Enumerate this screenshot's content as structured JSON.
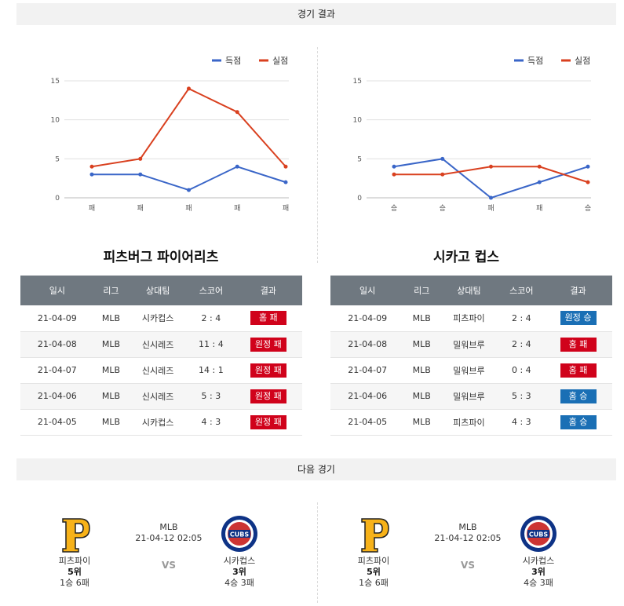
{
  "header": {
    "results_title": "경기 결과",
    "next_title": "다음 경기"
  },
  "legend": {
    "score": "득점",
    "conceded": "실점"
  },
  "colors": {
    "score": "#3a66c8",
    "conceded": "#d9401f",
    "loss": "#d0021b",
    "win": "#1a6fb5"
  },
  "chart_data": [
    {
      "type": "line",
      "team": "피츠버그 파이어리츠",
      "categories": [
        "패",
        "패",
        "패",
        "패",
        "패"
      ],
      "series": [
        {
          "name": "득점",
          "values": [
            3,
            3,
            1,
            4,
            2
          ]
        },
        {
          "name": "실점",
          "values": [
            4,
            5,
            14,
            11,
            4
          ]
        }
      ],
      "yticks": [
        0,
        5,
        10,
        15
      ],
      "ylim": [
        0,
        15
      ],
      "legend": "top-right",
      "grid": true
    },
    {
      "type": "line",
      "team": "시카고 컵스",
      "categories": [
        "승",
        "승",
        "패",
        "패",
        "승"
      ],
      "series": [
        {
          "name": "득점",
          "values": [
            4,
            5,
            0,
            2,
            4
          ]
        },
        {
          "name": "실점",
          "values": [
            3,
            3,
            4,
            4,
            2
          ]
        }
      ],
      "yticks": [
        0,
        5,
        10,
        15
      ],
      "ylim": [
        0,
        15
      ],
      "legend": "top-right",
      "grid": true
    }
  ],
  "table_headers": [
    "일시",
    "리그",
    "상대팀",
    "스코어",
    "결과"
  ],
  "teams": [
    {
      "title": "피츠버그 파이어리츠",
      "rows": [
        {
          "date": "21-04-09",
          "league": "MLB",
          "opponent": "시카컵스",
          "score": "2 : 4",
          "result": "홈 패",
          "outcome": "loss"
        },
        {
          "date": "21-04-08",
          "league": "MLB",
          "opponent": "신시레즈",
          "score": "11 : 4",
          "result": "원정 패",
          "outcome": "loss"
        },
        {
          "date": "21-04-07",
          "league": "MLB",
          "opponent": "신시레즈",
          "score": "14 : 1",
          "result": "원정 패",
          "outcome": "loss"
        },
        {
          "date": "21-04-06",
          "league": "MLB",
          "opponent": "신시레즈",
          "score": "5 : 3",
          "result": "원정 패",
          "outcome": "loss"
        },
        {
          "date": "21-04-05",
          "league": "MLB",
          "opponent": "시카컵스",
          "score": "4 : 3",
          "result": "원정 패",
          "outcome": "loss"
        }
      ]
    },
    {
      "title": "시카고 컵스",
      "rows": [
        {
          "date": "21-04-09",
          "league": "MLB",
          "opponent": "피츠파이",
          "score": "2 : 4",
          "result": "원정 승",
          "outcome": "win"
        },
        {
          "date": "21-04-08",
          "league": "MLB",
          "opponent": "밀워브루",
          "score": "2 : 4",
          "result": "홈 패",
          "outcome": "loss"
        },
        {
          "date": "21-04-07",
          "league": "MLB",
          "opponent": "밀워브루",
          "score": "0 : 4",
          "result": "홈 패",
          "outcome": "loss"
        },
        {
          "date": "21-04-06",
          "league": "MLB",
          "opponent": "밀워브루",
          "score": "5 : 3",
          "result": "홈 승",
          "outcome": "win"
        },
        {
          "date": "21-04-05",
          "league": "MLB",
          "opponent": "피츠파이",
          "score": "4 : 3",
          "result": "홈 승",
          "outcome": "win"
        }
      ]
    }
  ],
  "next_games": [
    {
      "home": {
        "name": "피츠파이",
        "rank": "5위",
        "record": "1승 6패",
        "logo": "pirates-logo"
      },
      "league": "MLB",
      "time": "21-04-12 02:05",
      "vs": "VS",
      "away": {
        "name": "시카컵스",
        "rank": "3위",
        "record": "4승 3패",
        "logo": "cubs-logo",
        "logo_text": "CUBS"
      }
    },
    {
      "home": {
        "name": "피츠파이",
        "rank": "5위",
        "record": "1승 6패",
        "logo": "pirates-logo"
      },
      "league": "MLB",
      "time": "21-04-12 02:05",
      "vs": "VS",
      "away": {
        "name": "시카컵스",
        "rank": "3위",
        "record": "4승 3패",
        "logo": "cubs-logo",
        "logo_text": "CUBS"
      }
    }
  ]
}
